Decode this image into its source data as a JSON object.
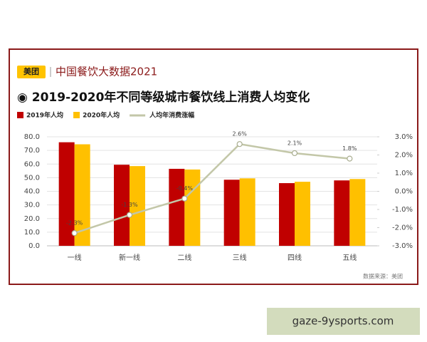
{
  "header": {
    "logo": "美团",
    "brand": "中国餐饮大数据2021"
  },
  "chart_data": {
    "type": "bar",
    "title": "◉ 2019-2020年不同等级城市餐饮线上消费人均变化",
    "categories": [
      "一线",
      "新一线",
      "二线",
      "三线",
      "四线",
      "五线"
    ],
    "series": [
      {
        "name": "2019年人均",
        "color": "#c00000",
        "values": [
          76,
          59.5,
          56.5,
          48.5,
          46,
          48
        ]
      },
      {
        "name": "2020年人均",
        "color": "#ffc000",
        "values": [
          74.5,
          58.5,
          56,
          49.5,
          47,
          49
        ]
      },
      {
        "name": "人均年消费涨幅",
        "color": "#c3c7a8",
        "type": "line",
        "axis": "y2",
        "values": [
          -2.3,
          -1.3,
          -0.4,
          2.6,
          2.1,
          1.8
        ],
        "value_labels": [
          "-2.3%",
          "-1.3%",
          "-0.4%",
          "2.6%",
          "2.1%",
          "1.8%"
        ]
      }
    ],
    "ylim": [
      0,
      80
    ],
    "yticks": [
      {
        "value": 0,
        "label": "0.0"
      },
      {
        "value": 10,
        "label": "10.0"
      },
      {
        "value": 20,
        "label": "20.0"
      },
      {
        "value": 30,
        "label": "30.0"
      },
      {
        "value": 40,
        "label": "40.0"
      },
      {
        "value": 50,
        "label": "50.0"
      },
      {
        "value": 60,
        "label": "60.0"
      },
      {
        "value": 70,
        "label": "70.0"
      },
      {
        "value": 80,
        "label": "80.0"
      }
    ],
    "y2lim": [
      -3,
      3
    ],
    "y2ticks": [
      {
        "value": -3,
        "label": "-3.0%"
      },
      {
        "value": -2,
        "label": "-2.0%"
      },
      {
        "value": -1,
        "label": "-1.0%"
      },
      {
        "value": 0,
        "label": "0.0%"
      },
      {
        "value": 1,
        "label": "1.0%"
      },
      {
        "value": 2,
        "label": "2.0%"
      },
      {
        "value": 3,
        "label": "3.0%"
      }
    ],
    "grid": true,
    "source": "数据来源：美团"
  },
  "watermark": "gaze-9ysports.com"
}
